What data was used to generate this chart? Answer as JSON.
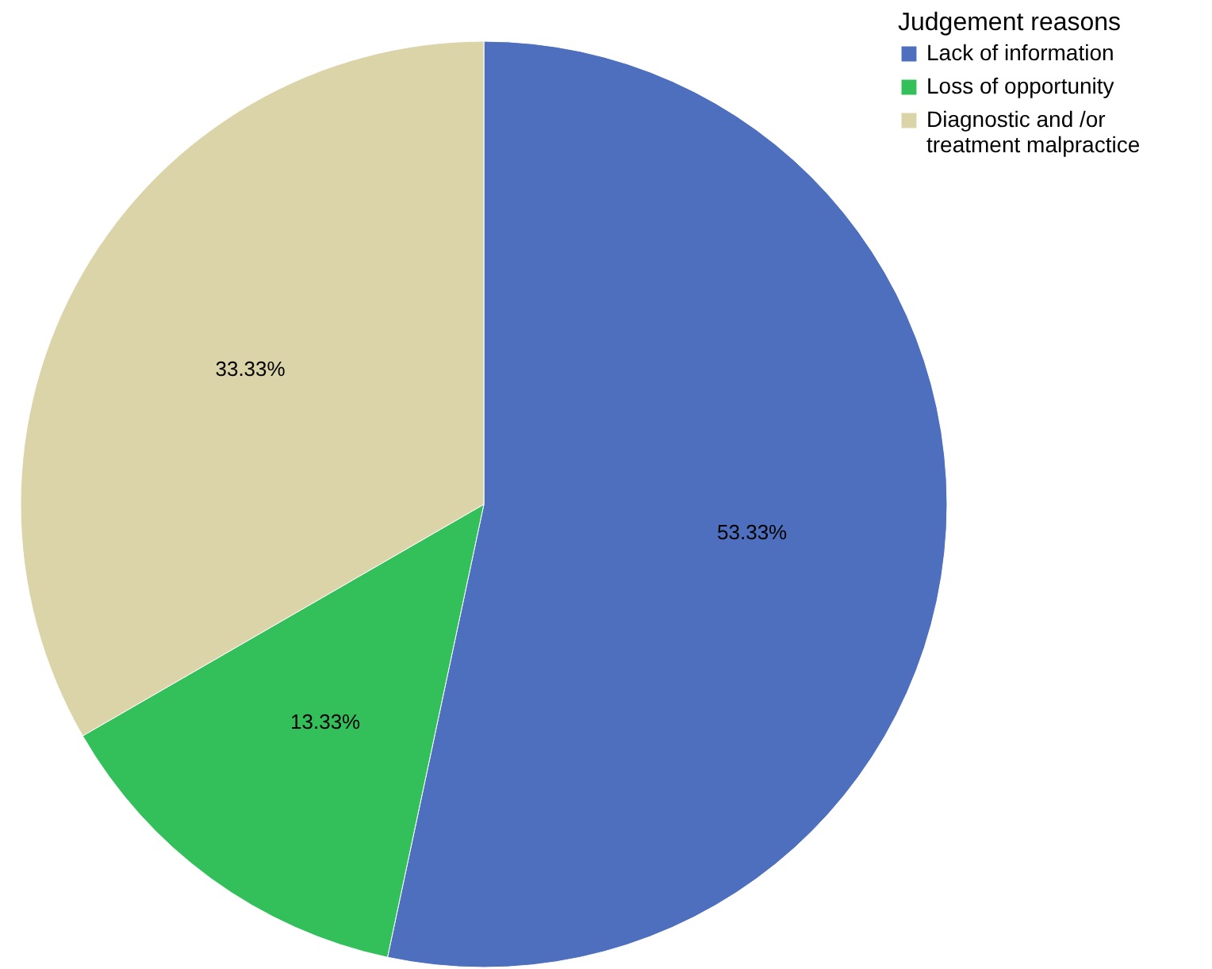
{
  "chart_data": {
    "type": "pie",
    "legend_title": "Judgement reasons",
    "legend": "top right",
    "categories": [
      "Lack of information",
      "Loss of opportunity",
      "Diagnostic and /or treatment malpractice"
    ],
    "values": [
      53.33,
      13.33,
      33.33
    ],
    "colors": [
      "#4e6fbe",
      "#33c05a",
      "#dbd4a8"
    ],
    "value_labels": [
      "53.33%",
      "13.33%",
      "33.33%"
    ]
  }
}
